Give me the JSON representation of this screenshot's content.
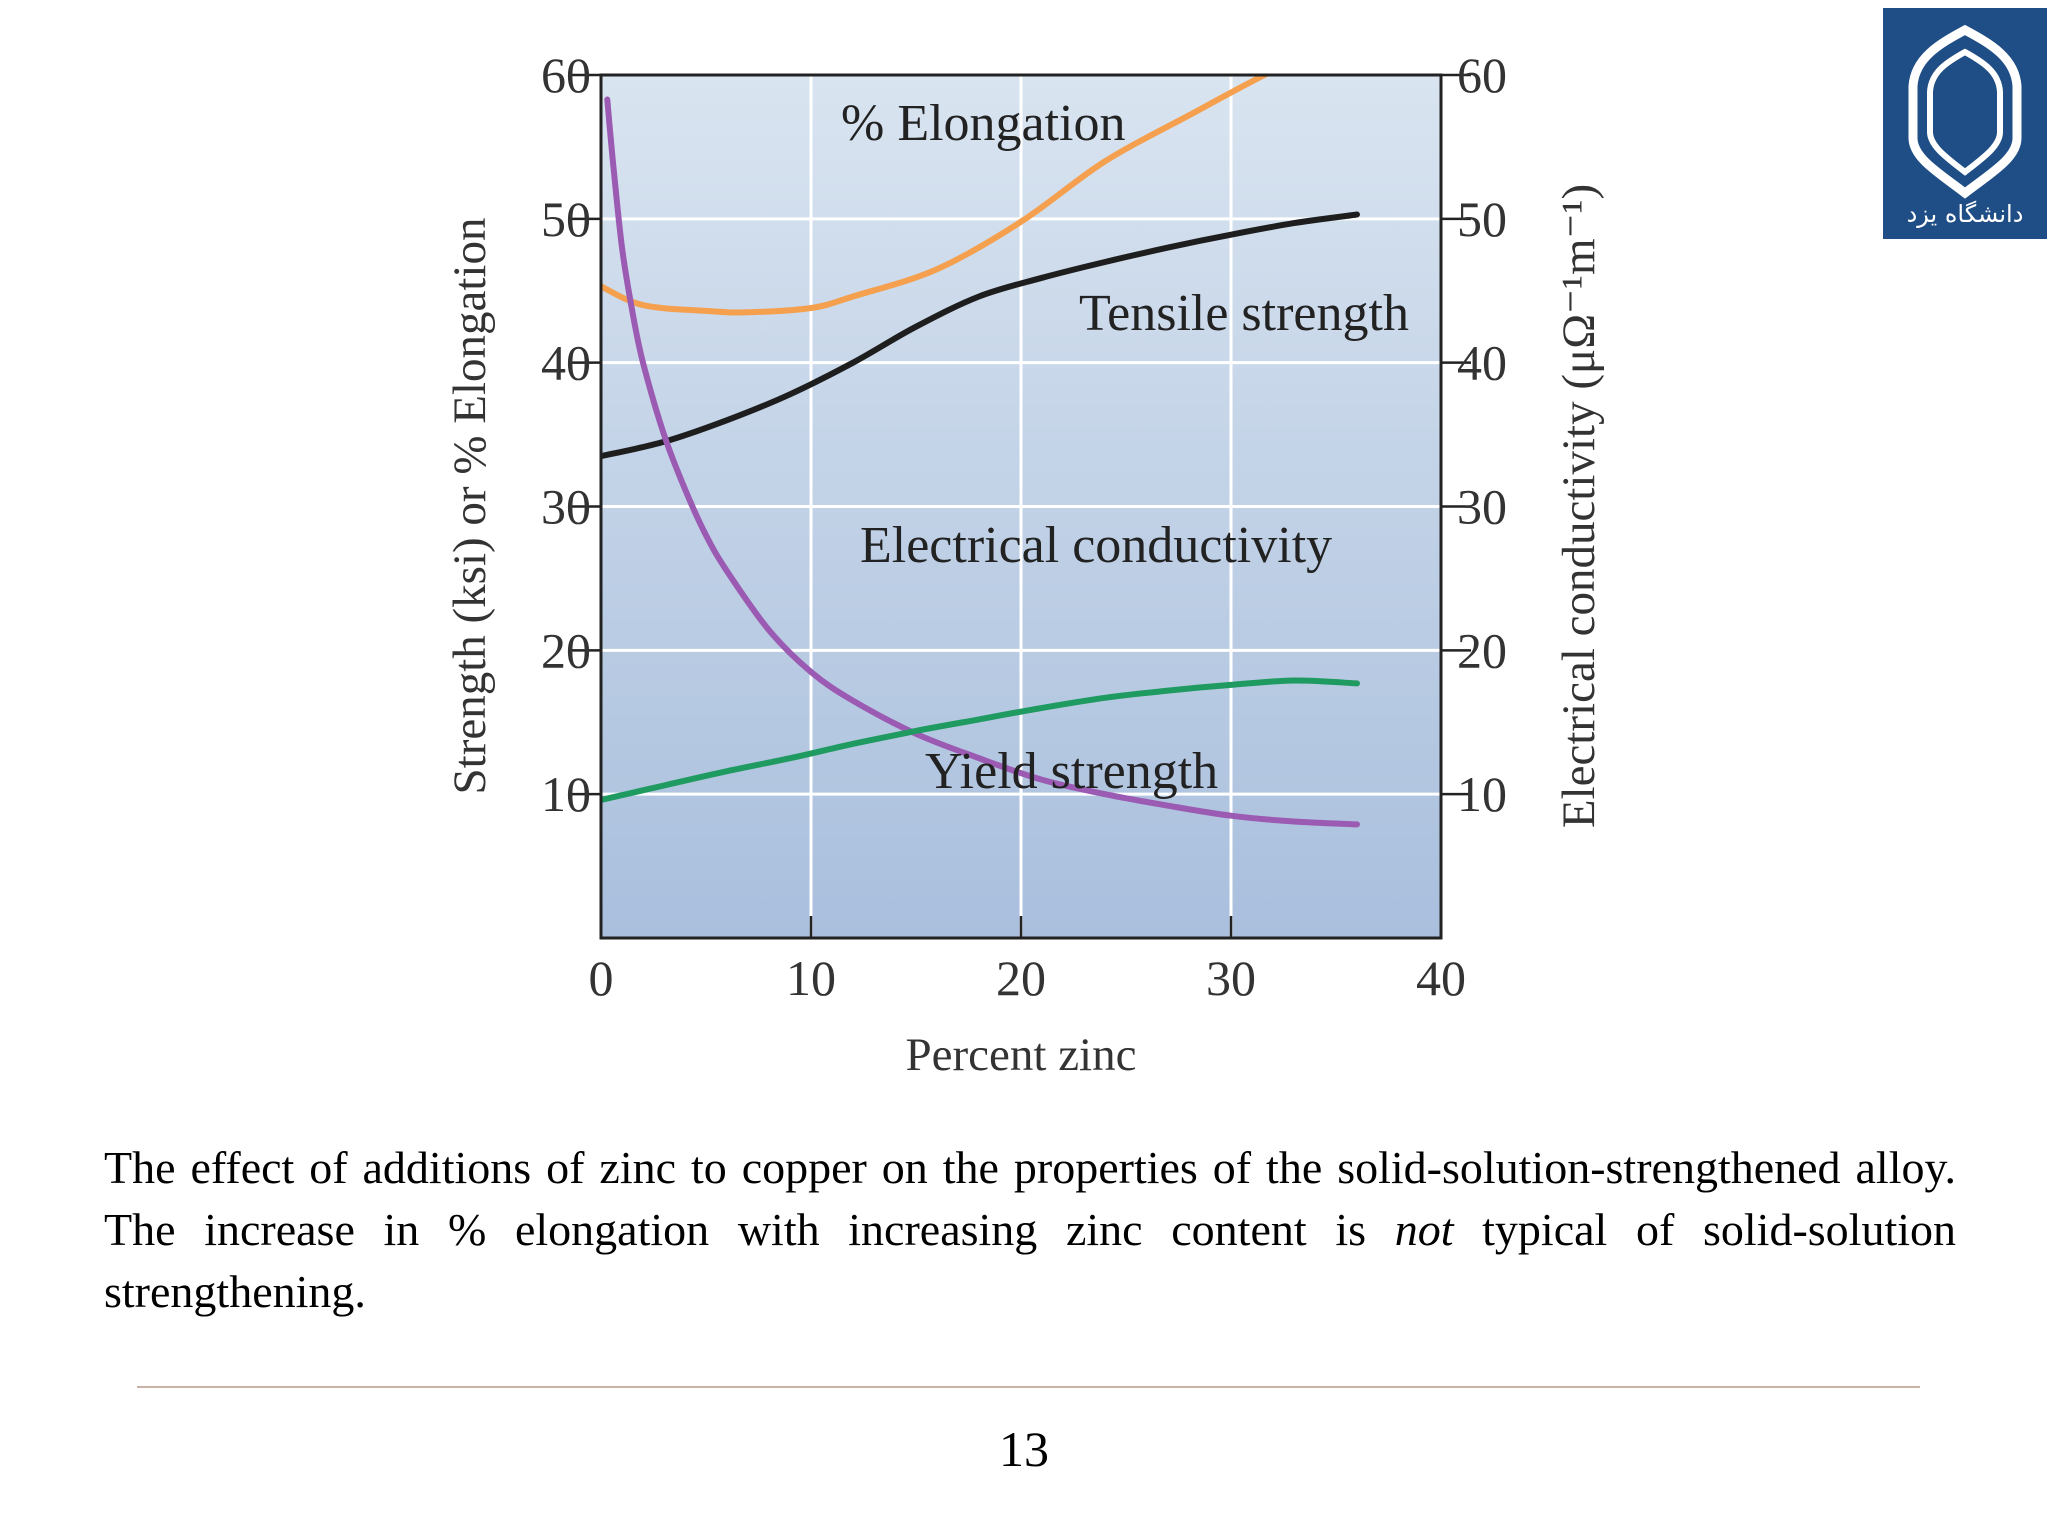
{
  "chart_data": {
    "type": "line",
    "xlabel": "Percent zinc",
    "ylabel": "Strength (ksi) or % Elongation",
    "y2label": "Electrical conductivity (μΩ⁻¹m⁻¹)",
    "xlim": [
      0,
      40
    ],
    "ylim": [
      0,
      60
    ],
    "y2lim": [
      0,
      60
    ],
    "xticks": [
      "0",
      "10",
      "20",
      "30",
      "40"
    ],
    "yticks": [
      "10",
      "20",
      "30",
      "40",
      "50",
      "60"
    ],
    "y2ticks": [
      "10",
      "20",
      "30",
      "40",
      "50",
      "60"
    ],
    "grid": true,
    "legend": "none",
    "series": [
      {
        "name": "% Elongation",
        "color": "#f5a04f",
        "axis": "left",
        "x": [
          0,
          2,
          5,
          7,
          10,
          12,
          16,
          20,
          24,
          28,
          32,
          36
        ],
        "y": [
          45.3,
          44.0,
          43.6,
          43.5,
          43.8,
          44.6,
          46.5,
          49.8,
          54.0,
          57.2,
          60.3,
          63.0
        ]
      },
      {
        "name": "Tensile strength",
        "color": "#1e1e1e",
        "axis": "left",
        "x": [
          0,
          3,
          6,
          9,
          12,
          15,
          18,
          21,
          24,
          27,
          30,
          33,
          36
        ],
        "y": [
          33.5,
          34.5,
          36.0,
          37.8,
          40.0,
          42.5,
          44.6,
          45.9,
          47.0,
          48.0,
          48.9,
          49.7,
          50.3
        ]
      },
      {
        "name": "Electrical conductivity",
        "color": "#9b5bb3",
        "axis": "right",
        "x": [
          0.3,
          0.6,
          1,
          1.5,
          2,
          3,
          4,
          5,
          6,
          8,
          10,
          12,
          15,
          18,
          21,
          24,
          27,
          30,
          33,
          36
        ],
        "y": [
          58.3,
          53.5,
          48.0,
          43.5,
          40.0,
          35.0,
          31.2,
          28.0,
          25.5,
          21.4,
          18.5,
          16.5,
          14.2,
          12.5,
          11.0,
          10.0,
          9.2,
          8.5,
          8.1,
          7.9
        ]
      },
      {
        "name": "Yield strength",
        "color": "#1f9a60",
        "axis": "left",
        "x": [
          0,
          3,
          6,
          9,
          12,
          15,
          18,
          21,
          24,
          27,
          30,
          33,
          36
        ],
        "y": [
          9.6,
          10.6,
          11.6,
          12.5,
          13.5,
          14.4,
          15.2,
          16.0,
          16.7,
          17.2,
          17.6,
          17.9,
          17.7
        ]
      }
    ],
    "annotations": [
      "% Elongation",
      "Tensile strength",
      "Electrical conductivity",
      "Yield strength"
    ]
  },
  "logo": {
    "text": "دانشگاه یزد",
    "bg_color": "#1f4e86"
  },
  "caption": {
    "part1": "The effect of additions of zinc to copper on the properties of the solid-solution-strengthened alloy. The increase in % elongation with increasing zinc content is ",
    "emphasis": "not",
    "part2": " typical of solid-solution strengthening."
  },
  "page_number": "13"
}
